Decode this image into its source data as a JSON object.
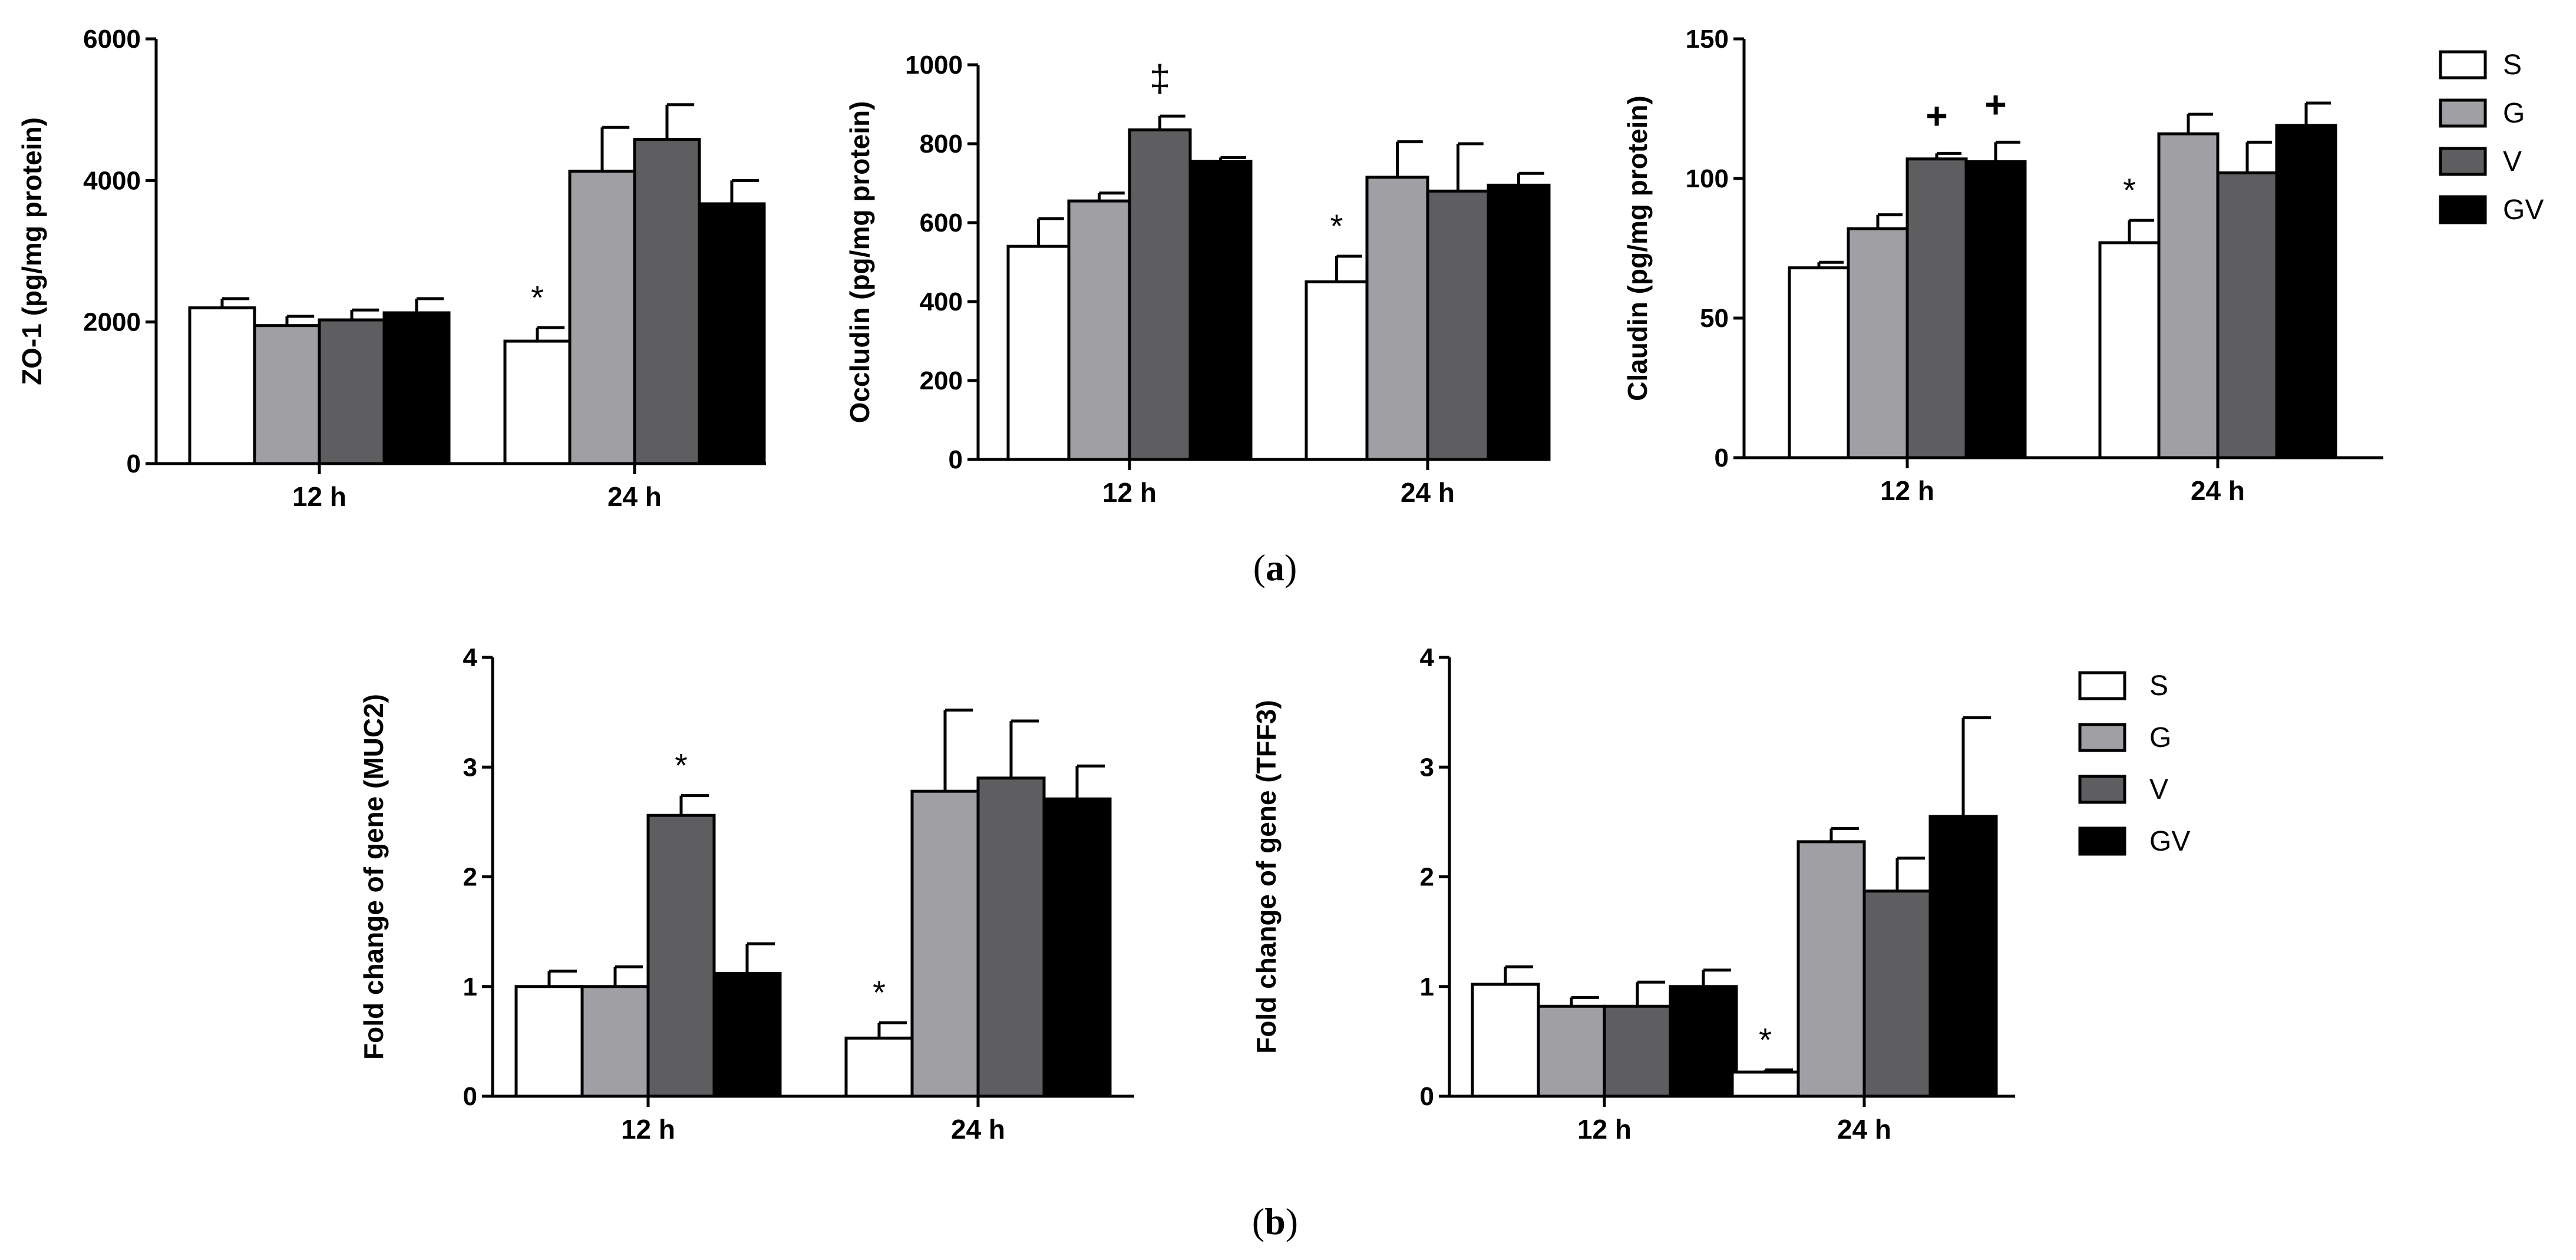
{
  "colors": {
    "S": "#ffffff",
    "G": "#a0a0a4",
    "V": "#5e5e60",
    "GV": "#000000",
    "axis": "#000000"
  },
  "panel_labels": {
    "a_prefix": "(",
    "a_letter": "a",
    "a_suffix": ")",
    "b_prefix": "(",
    "b_letter": "b",
    "b_suffix": ")"
  },
  "legend_top": [
    "S",
    "G",
    "V",
    "GV"
  ],
  "legend_bottom": [
    "S",
    "G",
    "V",
    "GV"
  ],
  "chart_data": [
    {
      "id": "zo1",
      "type": "bar",
      "title": "",
      "ylabel": "ZO-1 (pg/mg protein)",
      "ylim": [
        0,
        6000
      ],
      "yticks": [
        0,
        2000,
        4000,
        6000
      ],
      "categories": [
        "12 h",
        "24 h"
      ],
      "series": [
        {
          "name": "S",
          "values": [
            2200,
            1730
          ],
          "errors": [
            130,
            190
          ]
        },
        {
          "name": "G",
          "values": [
            1950,
            4130
          ],
          "errors": [
            130,
            620
          ]
        },
        {
          "name": "V",
          "values": [
            2030,
            4580
          ],
          "errors": [
            140,
            490
          ]
        },
        {
          "name": "GV",
          "values": [
            2130,
            3670
          ],
          "errors": [
            200,
            330
          ]
        }
      ],
      "annotations": [
        {
          "category": 1,
          "series": 0,
          "text": "*"
        }
      ]
    },
    {
      "id": "occludin",
      "type": "bar",
      "title": "",
      "ylabel": "Occludin (pg/mg protein)",
      "ylim": [
        0,
        1000
      ],
      "yticks": [
        0,
        200,
        400,
        600,
        800,
        1000
      ],
      "categories": [
        "12 h",
        "24 h"
      ],
      "series": [
        {
          "name": "S",
          "values": [
            540,
            450
          ],
          "errors": [
            70,
            65
          ]
        },
        {
          "name": "G",
          "values": [
            655,
            715
          ],
          "errors": [
            20,
            90
          ]
        },
        {
          "name": "V",
          "values": [
            835,
            680
          ],
          "errors": [
            35,
            120
          ]
        },
        {
          "name": "GV",
          "values": [
            755,
            695
          ],
          "errors": [
            10,
            30
          ]
        }
      ],
      "annotations": [
        {
          "category": 0,
          "series": 2,
          "text": "‡"
        },
        {
          "category": 1,
          "series": 0,
          "text": "*"
        }
      ]
    },
    {
      "id": "claudin",
      "type": "bar",
      "title": "",
      "ylabel": "Claudin (pg/mg protein)",
      "ylim": [
        0,
        150
      ],
      "yticks": [
        0,
        50,
        100,
        150
      ],
      "categories": [
        "12 h",
        "24 h"
      ],
      "series": [
        {
          "name": "S",
          "values": [
            68,
            77
          ],
          "errors": [
            2,
            8
          ]
        },
        {
          "name": "G",
          "values": [
            82,
            116
          ],
          "errors": [
            5,
            7
          ]
        },
        {
          "name": "V",
          "values": [
            107,
            102
          ],
          "errors": [
            2,
            11
          ]
        },
        {
          "name": "GV",
          "values": [
            106,
            119
          ],
          "errors": [
            7,
            8
          ]
        }
      ],
      "annotations": [
        {
          "category": 0,
          "series": 2,
          "text": "+"
        },
        {
          "category": 0,
          "series": 3,
          "text": "+"
        },
        {
          "category": 1,
          "series": 0,
          "text": "*"
        }
      ]
    },
    {
      "id": "muc2",
      "type": "bar",
      "title": "",
      "ylabel": "Fold change of gene (MUC2)",
      "ylim": [
        0,
        4
      ],
      "yticks": [
        0,
        1,
        2,
        3,
        4
      ],
      "categories": [
        "12 h",
        "24 h"
      ],
      "series": [
        {
          "name": "S",
          "values": [
            1.0,
            0.53
          ],
          "errors": [
            0.14,
            0.14
          ]
        },
        {
          "name": "G",
          "values": [
            1.0,
            2.78
          ],
          "errors": [
            0.18,
            0.74
          ]
        },
        {
          "name": "V",
          "values": [
            2.56,
            2.9
          ],
          "errors": [
            0.18,
            0.52
          ]
        },
        {
          "name": "GV",
          "values": [
            1.12,
            2.71
          ],
          "errors": [
            0.27,
            0.3
          ]
        }
      ],
      "annotations": [
        {
          "category": 0,
          "series": 2,
          "text": "*"
        },
        {
          "category": 1,
          "series": 0,
          "text": "*"
        }
      ]
    },
    {
      "id": "tff3",
      "type": "bar",
      "title": "",
      "ylabel": "Fold change of gene (TFF3)",
      "ylim": [
        0,
        4
      ],
      "yticks": [
        0,
        1,
        2,
        3,
        4
      ],
      "categories": [
        "12 h",
        "24 h"
      ],
      "series": [
        {
          "name": "S",
          "values": [
            1.02,
            0.22
          ],
          "errors": [
            0.16,
            0.02
          ]
        },
        {
          "name": "G",
          "values": [
            0.82,
            2.32
          ],
          "errors": [
            0.08,
            0.12
          ]
        },
        {
          "name": "V",
          "values": [
            0.82,
            1.87
          ],
          "errors": [
            0.22,
            0.3
          ]
        },
        {
          "name": "GV",
          "values": [
            1.0,
            2.55
          ],
          "errors": [
            0.15,
            0.9
          ]
        }
      ],
      "annotations": [
        {
          "category": 1,
          "series": 0,
          "text": "*"
        }
      ]
    }
  ]
}
